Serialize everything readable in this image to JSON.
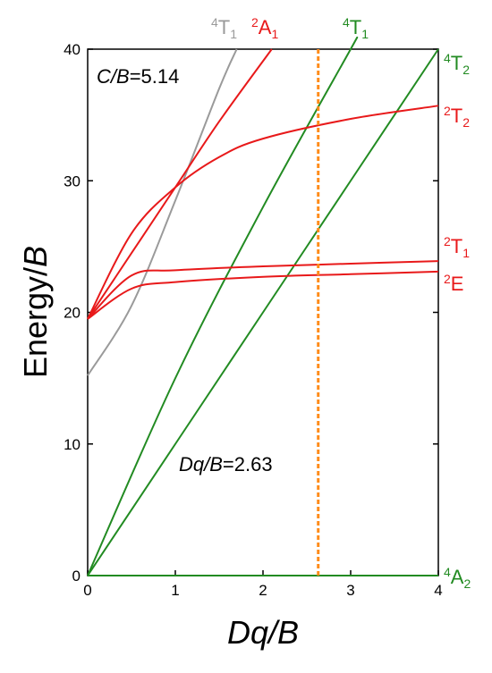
{
  "chart_data": {
    "type": "line",
    "xlabel": {
      "main": "Dq",
      "rest": "/B"
    },
    "ylabel": {
      "main": "Energy/",
      "rest": "B"
    },
    "xlim": [
      0,
      4
    ],
    "ylim": [
      0,
      40
    ],
    "x_ticks": [
      0,
      1,
      2,
      3,
      4
    ],
    "y_ticks": [
      0,
      10,
      20,
      30,
      40
    ],
    "colors": {
      "spin_allowed": "#228b22",
      "spin_forbidden": "#e8191a",
      "gray": "#9a9a9a",
      "marker": "#ff8c1a"
    },
    "annotations": {
      "cb": {
        "italic": "C/B",
        "value": "=5.14"
      },
      "dqb": {
        "italic": "Dq/B",
        "value": "=2.63"
      }
    },
    "marker_line": {
      "x": 2.63
    },
    "series": [
      {
        "term": "4T1",
        "side": "top",
        "x": [
          0,
          0.5,
          1,
          1.5,
          1.7
        ],
        "y": [
          15.2,
          20.5,
          28.5,
          37.0,
          40.0
        ]
      },
      {
        "term": "2A1",
        "side": "top",
        "x": [
          0,
          0.5,
          1,
          1.5,
          2.1
        ],
        "y": [
          19.5,
          24.5,
          29.5,
          34.5,
          40.0
        ]
      },
      {
        "term": "4T1",
        "side": "top",
        "x": [
          0,
          1,
          2,
          3,
          3.0
        ],
        "y": [
          0,
          15.0,
          28.0,
          40.0,
          40.0
        ]
      },
      {
        "term": "4T2",
        "side": "right",
        "x": [
          0,
          1,
          2,
          3,
          4
        ],
        "y": [
          0,
          10,
          20,
          30,
          40
        ]
      },
      {
        "term": "2T2",
        "side": "right",
        "x": [
          0,
          0.5,
          1,
          1.5,
          2,
          3,
          4
        ],
        "y": [
          19.5,
          26.0,
          29.5,
          31.8,
          33.2,
          34.7,
          35.7
        ]
      },
      {
        "term": "2T1",
        "side": "right",
        "x": [
          0,
          0.5,
          1,
          2,
          3,
          4
        ],
        "y": [
          19.5,
          22.8,
          23.2,
          23.5,
          23.7,
          23.9
        ]
      },
      {
        "term": "2E",
        "side": "right",
        "x": [
          0,
          0.5,
          1,
          2,
          3,
          4
        ],
        "y": [
          19.5,
          21.8,
          22.3,
          22.7,
          22.9,
          23.1
        ]
      },
      {
        "term": "4A2",
        "side": "right",
        "x": [
          0,
          4
        ],
        "y": [
          0,
          0
        ]
      }
    ]
  },
  "term_labels": {
    "t4T1_gray": {
      "sup": "4",
      "base": "T",
      "sub": "1"
    },
    "t2A1": {
      "sup": "2",
      "base": "A",
      "sub": "1"
    },
    "t4T1_green": {
      "sup": "4",
      "base": "T",
      "sub": "1"
    },
    "t4T2": {
      "sup": "4",
      "base": "T",
      "sub": "2"
    },
    "t2T2": {
      "sup": "2",
      "base": "T",
      "sub": "2"
    },
    "t2T1": {
      "sup": "2",
      "base": "T",
      "sub": "1"
    },
    "t2E": {
      "sup": "2",
      "base": "E",
      "sub": ""
    },
    "t4A2": {
      "sup": "4",
      "base": "A",
      "sub": "2"
    }
  }
}
